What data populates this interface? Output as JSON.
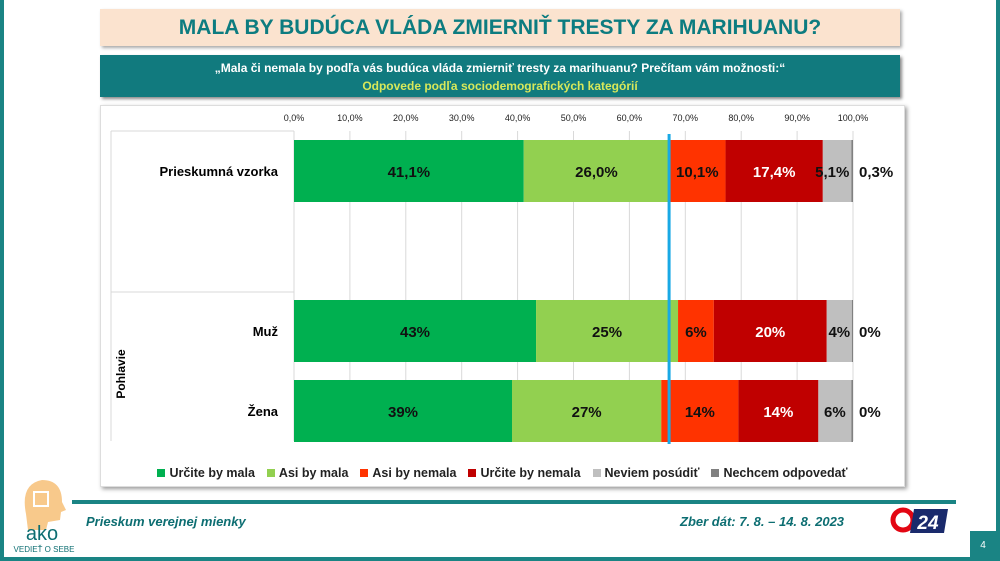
{
  "title": "MALA BY BUDÚCA VLÁDA ZMIERNIŤ TRESTY ZA MARIHUANU?",
  "question": "„Mala či nemala by podľa vás budúca vláda zmierniť tresty za marihuanu? Prečítam vám možnosti:“",
  "subtitle": "Odpovede podľa sociodemografických kategórií",
  "footer": {
    "left": "Prieskum verejnej mienky",
    "right": "Zber dát: 7. 8. – 14. 8. 2023",
    "page": "4",
    "logo": "ako",
    "logo_tagline": "VEDIEŤ O SEBE",
    "tv_logo": "24"
  },
  "chart_data": {
    "type": "bar",
    "orientation": "horizontal",
    "stacked": true,
    "xlim": [
      0,
      100
    ],
    "ticks": [
      "0,0%",
      "10,0%",
      "20,0%",
      "30,0%",
      "40,0%",
      "50,0%",
      "60,0%",
      "70,0%",
      "80,0%",
      "90,0%",
      "100,0%"
    ],
    "group_label": "Pohlavie",
    "reference_line": 67.1,
    "legend_position": "bottom",
    "series": [
      {
        "name": "Určite by mala",
        "color": "#00b050"
      },
      {
        "name": "Asi by mala",
        "color": "#92d050"
      },
      {
        "name": "Asi by nemala",
        "color": "#ff3300"
      },
      {
        "name": "Určite by nemala",
        "color": "#c00000"
      },
      {
        "name": "Neviem posúdiť",
        "color": "#bfbfbf"
      },
      {
        "name": "Nechcem odpovedať",
        "color": "#808080"
      }
    ],
    "categories": [
      {
        "label": "Prieskumná vzorka",
        "values": [
          41.1,
          26.0,
          10.1,
          17.4,
          5.1,
          0.3
        ],
        "labels": [
          "41,1%",
          "26,0%",
          "10,1%",
          "17,4%",
          "5,1%",
          "0,3%"
        ]
      },
      {
        "label": "Muž",
        "values": [
          43.3,
          25.4,
          6.4,
          20.2,
          4.5,
          0.2
        ],
        "labels": [
          "43%",
          "25%",
          "6%",
          "20%",
          "4%",
          "0%"
        ]
      },
      {
        "label": "Žena",
        "values": [
          39.0,
          26.7,
          13.8,
          14.3,
          5.9,
          0.3
        ],
        "labels": [
          "39%",
          "27%",
          "14%",
          "14%",
          "6%",
          "0%"
        ]
      }
    ]
  }
}
